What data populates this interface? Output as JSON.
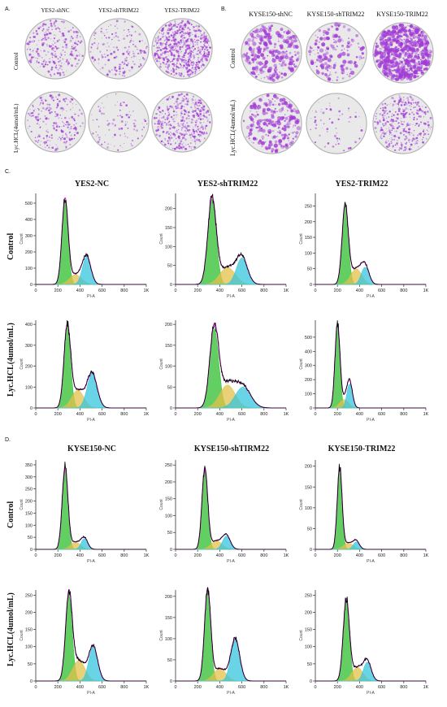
{
  "panelA": {
    "letter": "A.",
    "titles": [
      "YES2-shNC",
      "YES2-shTRIM22",
      "YES2-TRIM22"
    ],
    "rows": [
      "Control",
      "Lyc.HCL(4umol/mL)"
    ]
  },
  "panelB": {
    "letter": "B.",
    "titles": [
      "KYSE150-shNC",
      "KYSE150-shTRIM22",
      "KYSE150-TRIM22"
    ],
    "rows": [
      "Control",
      "Lyc.HCL(4umol/mL)"
    ]
  },
  "panelC": {
    "letter": "C.",
    "titles": [
      "YES2-NC",
      "YES2-shTRIM22",
      "YES2-TRIM22"
    ],
    "rows": [
      "Control",
      "Lyc.HCL(4umol/mL)"
    ]
  },
  "panelD": {
    "letter": "D.",
    "titles": [
      "KYSE150-NC",
      "KYSE150-shTIRM22",
      "KYSE150-TRIM22"
    ],
    "rows": [
      "Control",
      "Lyc.HCL(4umol/mL)"
    ]
  },
  "axes": {
    "xlabel": "PI-A",
    "ylabel": "Count",
    "xticks": [
      "0",
      "200",
      "400",
      "600",
      "800",
      "1K"
    ]
  },
  "colors": {
    "plate_stain": "#a23bd6",
    "plate_bg": "#e9e9e9",
    "g1": "#2fbf2f",
    "s": "#e3c04a",
    "g2": "#35c6dc",
    "fit": "#e020e0",
    "data": "#000000",
    "axis": "#333333"
  },
  "chart_data": [
    {
      "type": "area",
      "panel": "C",
      "title": "YES2-NC",
      "row": "Control",
      "yticks": [
        0,
        100,
        200,
        300,
        400,
        500
      ],
      "ymax": 560,
      "g1": {
        "mean": 265,
        "sd": 28,
        "height": 520
      },
      "s": {
        "mean": 360,
        "sd": 55,
        "height": 60
      },
      "g2": {
        "mean": 460,
        "sd": 38,
        "height": 170
      }
    },
    {
      "type": "area",
      "panel": "C",
      "title": "YES2-shTRIM22",
      "row": "Control",
      "yticks": [
        0,
        50,
        100,
        150,
        200
      ],
      "ymax": 240,
      "g1": {
        "mean": 330,
        "sd": 38,
        "height": 225
      },
      "s": {
        "mean": 470,
        "sd": 70,
        "height": 45
      },
      "g2": {
        "mean": 600,
        "sd": 50,
        "height": 70
      }
    },
    {
      "type": "area",
      "panel": "C",
      "title": "YES2-TRIM22",
      "row": "Control",
      "yticks": [
        0,
        50,
        100,
        150,
        200,
        250
      ],
      "ymax": 290,
      "g1": {
        "mean": 270,
        "sd": 28,
        "height": 250
      },
      "s": {
        "mean": 370,
        "sd": 50,
        "height": 50
      },
      "g2": {
        "mean": 450,
        "sd": 35,
        "height": 55
      }
    },
    {
      "type": "area",
      "panel": "C",
      "title": "YES2-NC",
      "row": "Lyc.HCL(4umol/mL)",
      "yticks": [
        0,
        100,
        200,
        300,
        400
      ],
      "ymax": 420,
      "g1": {
        "mean": 285,
        "sd": 30,
        "height": 385
      },
      "s": {
        "mean": 380,
        "sd": 55,
        "height": 85
      },
      "g2": {
        "mean": 510,
        "sd": 45,
        "height": 165
      }
    },
    {
      "type": "area",
      "panel": "C",
      "title": "YES2-shTRIM22",
      "row": "Lyc.HCL(4umol/mL)",
      "yticks": [
        0,
        50,
        100,
        150,
        200
      ],
      "ymax": 210,
      "g1": {
        "mean": 350,
        "sd": 40,
        "height": 190
      },
      "s": {
        "mean": 470,
        "sd": 70,
        "height": 55
      },
      "g2": {
        "mean": 610,
        "sd": 70,
        "height": 50
      }
    },
    {
      "type": "area",
      "panel": "C",
      "title": "YES2-TRIM22",
      "row": "Lyc.HCL(4umol/mL)",
      "yticks": [
        0,
        100,
        200,
        300,
        400,
        500
      ],
      "ymax": 620,
      "g1": {
        "mean": 200,
        "sd": 22,
        "height": 580
      },
      "s": {
        "mean": 260,
        "sd": 40,
        "height": 60
      },
      "g2": {
        "mean": 310,
        "sd": 25,
        "height": 170
      }
    },
    {
      "type": "area",
      "panel": "D",
      "title": "KYSE150-NC",
      "row": "Control",
      "yticks": [
        0,
        50,
        100,
        150,
        200,
        250,
        300,
        350
      ],
      "ymax": 370,
      "g1": {
        "mean": 265,
        "sd": 26,
        "height": 340
      },
      "s": {
        "mean": 360,
        "sd": 45,
        "height": 30
      },
      "g2": {
        "mean": 440,
        "sd": 30,
        "height": 45
      }
    },
    {
      "type": "area",
      "panel": "D",
      "title": "KYSE150-shTIRM22",
      "row": "Control",
      "yticks": [
        0,
        50,
        100,
        150,
        200,
        250
      ],
      "ymax": 265,
      "g1": {
        "mean": 265,
        "sd": 26,
        "height": 240
      },
      "s": {
        "mean": 370,
        "sd": 50,
        "height": 25
      },
      "g2": {
        "mean": 460,
        "sd": 35,
        "height": 40
      }
    },
    {
      "type": "area",
      "panel": "D",
      "title": "KYSE150-TRIM22",
      "row": "Control",
      "yticks": [
        0,
        50,
        100,
        150,
        200
      ],
      "ymax": 215,
      "g1": {
        "mean": 220,
        "sd": 22,
        "height": 195
      },
      "s": {
        "mean": 300,
        "sd": 45,
        "height": 15
      },
      "g2": {
        "mean": 370,
        "sd": 28,
        "height": 18
      }
    },
    {
      "type": "area",
      "panel": "D",
      "title": "KYSE150-NC",
      "row": "Lyc.HCL(4umol/mL)",
      "yticks": [
        0,
        50,
        100,
        150,
        200,
        250
      ],
      "ymax": 265,
      "g1": {
        "mean": 300,
        "sd": 30,
        "height": 250
      },
      "s": {
        "mean": 390,
        "sd": 55,
        "height": 60
      },
      "g2": {
        "mean": 520,
        "sd": 40,
        "height": 100
      }
    },
    {
      "type": "area",
      "panel": "D",
      "title": "KYSE150-shTIRM22",
      "row": "Lyc.HCL(4umol/mL)",
      "yticks": [
        0,
        50,
        100,
        150,
        200
      ],
      "ymax": 215,
      "g1": {
        "mean": 290,
        "sd": 28,
        "height": 215
      },
      "s": {
        "mean": 400,
        "sd": 55,
        "height": 30
      },
      "g2": {
        "mean": 540,
        "sd": 40,
        "height": 100
      }
    },
    {
      "type": "area",
      "panel": "D",
      "title": "KYSE150-TRIM22",
      "row": "Lyc.HCL(4umol/mL)",
      "yticks": [
        0,
        50,
        100,
        150,
        200,
        250
      ],
      "ymax": 265,
      "g1": {
        "mean": 280,
        "sd": 28,
        "height": 235
      },
      "s": {
        "mean": 380,
        "sd": 50,
        "height": 40
      },
      "g2": {
        "mean": 470,
        "sd": 35,
        "height": 55
      }
    }
  ]
}
